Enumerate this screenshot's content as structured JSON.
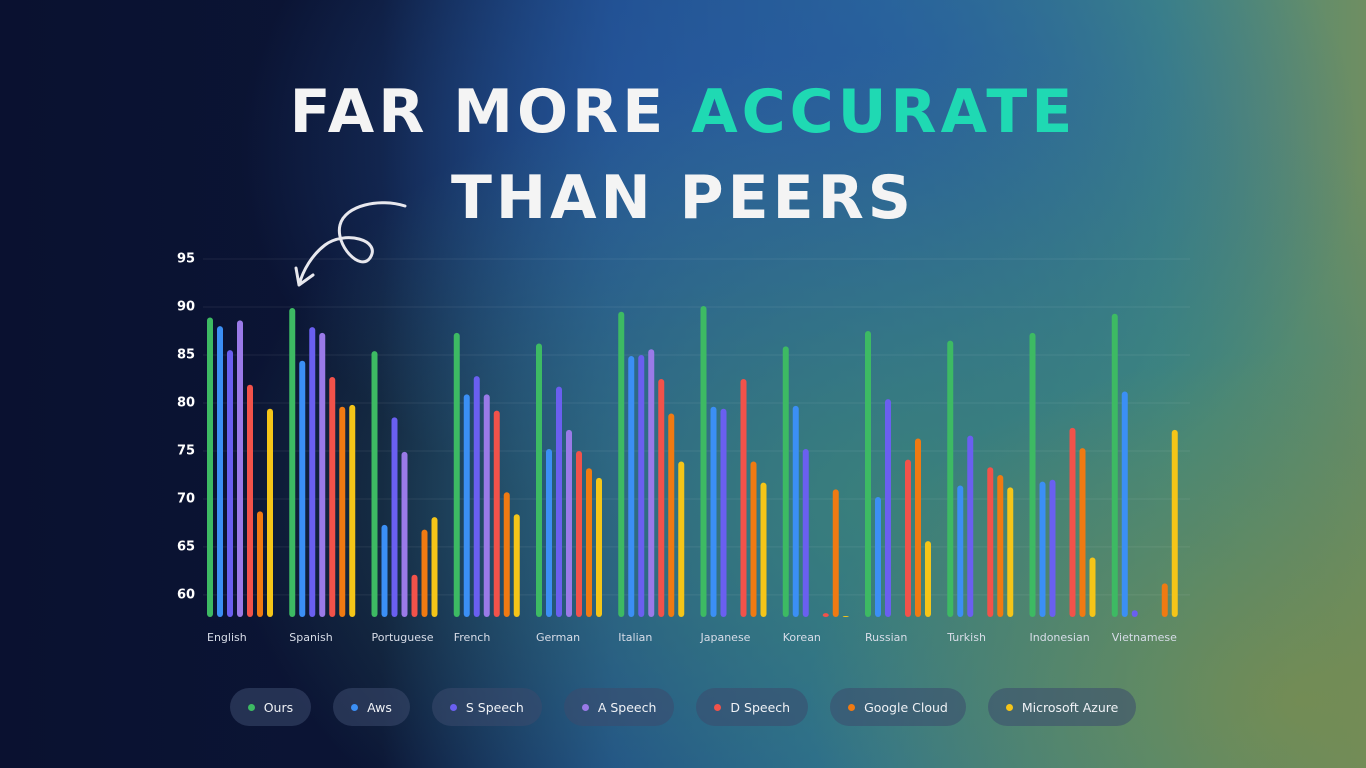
{
  "chart_data": {
    "type": "bar",
    "title_line1": "FAR MORE",
    "title_highlight": "ACCURATE",
    "title_line2": "THAN PEERS",
    "highlight_color": "#1fd9b3",
    "categories": [
      "English",
      "Spanish",
      "Portuguese",
      "French",
      "German",
      "Italian",
      "Japanese",
      "Korean",
      "Russian",
      "Turkish",
      "Indonesian",
      "Vietnamese"
    ],
    "series": [
      {
        "name": "Ours",
        "color": "#3dba63",
        "values": [
          88.9,
          89.9,
          85.4,
          87.3,
          86.2,
          89.5,
          90.1,
          85.9,
          87.5,
          86.5,
          87.3,
          89.3
        ]
      },
      {
        "name": "Aws",
        "color": "#3b8ff5",
        "values": [
          88.0,
          84.4,
          67.3,
          80.9,
          75.2,
          84.9,
          79.6,
          79.7,
          70.2,
          71.4,
          71.8,
          81.2
        ]
      },
      {
        "name": "S Speech",
        "color": "#6a5ff0",
        "values": [
          85.5,
          87.9,
          78.5,
          82.8,
          81.7,
          85.0,
          79.4,
          75.2,
          80.4,
          76.6,
          72.0,
          58.4
        ]
      },
      {
        "name": "A Speech",
        "color": "#9a7ae8",
        "values": [
          88.6,
          87.3,
          74.9,
          80.9,
          77.2,
          85.6,
          null,
          null,
          null,
          null,
          null,
          null
        ]
      },
      {
        "name": "D Speech",
        "color": "#f2524a",
        "values": [
          81.9,
          82.7,
          62.1,
          79.2,
          75.0,
          82.5,
          82.5,
          58.1,
          74.1,
          73.3,
          77.4,
          null
        ]
      },
      {
        "name": "Google Cloud",
        "color": "#f07a12",
        "values": [
          68.7,
          79.6,
          66.8,
          70.7,
          73.2,
          78.9,
          73.9,
          71.0,
          76.3,
          72.5,
          75.3,
          61.2
        ]
      },
      {
        "name": "Microsoft Azure",
        "color": "#f5c518",
        "values": [
          79.4,
          79.8,
          68.1,
          68.4,
          72.2,
          73.9,
          71.7,
          57.8,
          65.6,
          71.2,
          63.9,
          77.2
        ]
      }
    ],
    "ylim": [
      57.7,
      95
    ],
    "yticks": [
      60,
      65,
      70,
      75,
      80,
      85,
      90,
      95
    ],
    "grid": true
  }
}
